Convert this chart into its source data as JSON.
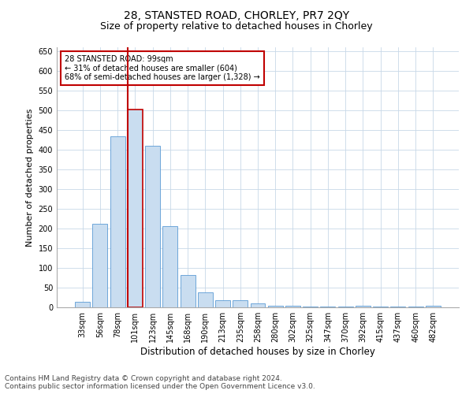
{
  "title": "28, STANSTED ROAD, CHORLEY, PR7 2QY",
  "subtitle": "Size of property relative to detached houses in Chorley",
  "xlabel": "Distribution of detached houses by size in Chorley",
  "ylabel": "Number of detached properties",
  "categories": [
    "33sqm",
    "56sqm",
    "78sqm",
    "101sqm",
    "123sqm",
    "145sqm",
    "168sqm",
    "190sqm",
    "213sqm",
    "235sqm",
    "258sqm",
    "280sqm",
    "302sqm",
    "325sqm",
    "347sqm",
    "370sqm",
    "392sqm",
    "415sqm",
    "437sqm",
    "460sqm",
    "482sqm"
  ],
  "values": [
    15,
    212,
    435,
    503,
    410,
    207,
    83,
    38,
    18,
    18,
    10,
    5,
    4,
    2,
    2,
    2,
    5,
    2,
    2,
    2,
    5
  ],
  "bar_color": "#c9ddf0",
  "bar_edge_color": "#5b9bd5",
  "highlight_bar_index": 3,
  "highlight_edge_color": "#c00000",
  "highlight_line_color": "#c00000",
  "ylim": [
    0,
    660
  ],
  "yticks": [
    0,
    50,
    100,
    150,
    200,
    250,
    300,
    350,
    400,
    450,
    500,
    550,
    600,
    650
  ],
  "annotation_text": "28 STANSTED ROAD: 99sqm\n← 31% of detached houses are smaller (604)\n68% of semi-detached houses are larger (1,328) →",
  "annotation_box_edge_color": "#c00000",
  "footer_line1": "Contains HM Land Registry data © Crown copyright and database right 2024.",
  "footer_line2": "Contains public sector information licensed under the Open Government Licence v3.0.",
  "background_color": "#ffffff",
  "grid_color": "#c8d8e8",
  "title_fontsize": 10,
  "subtitle_fontsize": 9,
  "xlabel_fontsize": 8.5,
  "ylabel_fontsize": 8,
  "tick_fontsize": 7,
  "footer_fontsize": 6.5
}
